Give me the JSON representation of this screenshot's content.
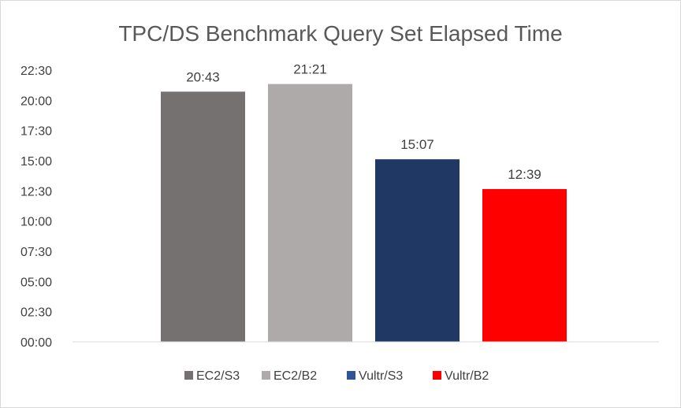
{
  "chart_data": {
    "type": "bar",
    "title": "TPC/DS Benchmark Query Set Elapsed Time",
    "xlabel": "",
    "ylabel": "",
    "y_unit": "minutes:seconds",
    "ylim_seconds": [
      0,
      1350
    ],
    "y_tick_step_seconds": 150,
    "y_ticks": [
      "00:00",
      "02:30",
      "05:00",
      "07:30",
      "10:00",
      "12:30",
      "15:00",
      "17:30",
      "20:00",
      "22:30"
    ],
    "grid": false,
    "legend_position": "bottom",
    "series": [
      {
        "name": "EC2/S3",
        "label": "20:43",
        "seconds": 1243,
        "color": "#757171"
      },
      {
        "name": "EC2/B2",
        "label": "21:21",
        "seconds": 1281,
        "color": "#aeaaaa"
      },
      {
        "name": "Vultr/S3",
        "label": "15:07",
        "seconds": 907,
        "color": "#203864"
      },
      {
        "name": "Vultr/B2",
        "label": "12:39",
        "seconds": 759,
        "color": "#ff0000"
      }
    ],
    "legend_swatch_colors": [
      "#757171",
      "#aeaaaa",
      "#2f5597",
      "#ff0000"
    ]
  }
}
